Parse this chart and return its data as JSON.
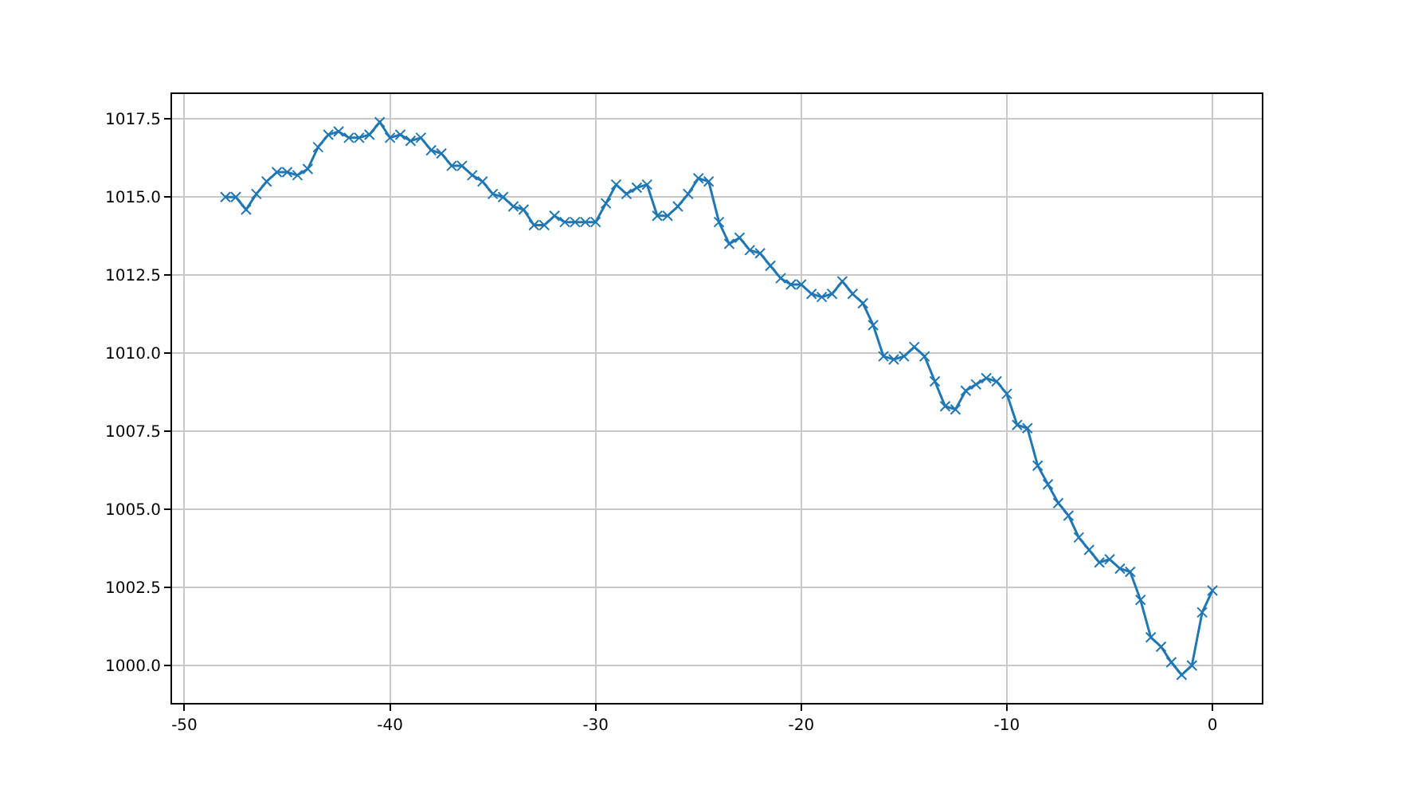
{
  "chart_data": {
    "type": "line",
    "x": [
      -48,
      -47.5,
      -47,
      -46.5,
      -46,
      -45.5,
      -45,
      -44.5,
      -44,
      -43.5,
      -43,
      -42.5,
      -42,
      -41.5,
      -41,
      -40.5,
      -40,
      -39.5,
      -39,
      -38.5,
      -38,
      -37.5,
      -37,
      -36.5,
      -36,
      -35.5,
      -35,
      -34.5,
      -34,
      -33.5,
      -33,
      -32.5,
      -32,
      -31.5,
      -31,
      -30.5,
      -30,
      -29.5,
      -29,
      -28.5,
      -28,
      -27.5,
      -27,
      -26.5,
      -26,
      -25.5,
      -25,
      -24.5,
      -24,
      -23.5,
      -23,
      -22.5,
      -22,
      -21.5,
      -21,
      -20.5,
      -20,
      -19.5,
      -19,
      -18.5,
      -18,
      -17.5,
      -17,
      -16.5,
      -16,
      -15.5,
      -15,
      -14.5,
      -14,
      -13.5,
      -13,
      -12.5,
      -12,
      -11.5,
      -11,
      -10.5,
      -10,
      -9.5,
      -9,
      -8.5,
      -8,
      -7.5,
      -7,
      -6.5,
      -6,
      -5.5,
      -5,
      -4.5,
      -4,
      -3.5,
      -3,
      -2.5,
      -2,
      -1.5,
      -1,
      -0.5,
      0
    ],
    "series": [
      {
        "color": "#1f77b4",
        "values": [
          1015.0,
          1015.0,
          1014.6,
          1015.1,
          1015.5,
          1015.8,
          1015.8,
          1015.7,
          1015.9,
          1016.6,
          1017.0,
          1017.1,
          1016.9,
          1016.9,
          1017.0,
          1017.4,
          1016.9,
          1017.0,
          1016.8,
          1016.9,
          1016.5,
          1016.4,
          1016.0,
          1016.0,
          1015.7,
          1015.5,
          1015.1,
          1015.0,
          1014.7,
          1014.6,
          1014.1,
          1014.1,
          1014.4,
          1014.2,
          1014.2,
          1014.2,
          1014.2,
          1014.8,
          1015.4,
          1015.1,
          1015.3,
          1015.4,
          1014.4,
          1014.4,
          1014.7,
          1015.1,
          1015.6,
          1015.5,
          1014.2,
          1013.5,
          1013.7,
          1013.3,
          1013.2,
          1012.8,
          1012.4,
          1012.2,
          1012.2,
          1011.9,
          1011.8,
          1011.9,
          1012.3,
          1011.9,
          1011.6,
          1010.9,
          1009.9,
          1009.8,
          1009.9,
          1010.2,
          1009.9,
          1009.1,
          1008.3,
          1008.2,
          1008.8,
          1009.0,
          1009.2,
          1009.1,
          1008.7,
          1007.7,
          1007.6,
          1006.4,
          1005.8,
          1005.2,
          1004.8,
          1004.1,
          1003.7,
          1003.3,
          1003.4,
          1003.1,
          1003.0,
          1002.1,
          1000.9,
          1000.6,
          1000.1,
          999.7,
          1000.0,
          1001.7,
          1002.4
        ]
      }
    ],
    "xlim": [
      -50.6,
      2.4
    ],
    "xticks": [
      -50,
      -40,
      -30,
      -20,
      -10,
      0
    ],
    "ylim": [
      998.8,
      1018.3
    ],
    "yticks": [
      {
        "value": 1000,
        "label": "1000.0"
      },
      {
        "value": 1002.5,
        "label": "1002.5"
      },
      {
        "value": 1005,
        "label": "1005.0"
      },
      {
        "value": 1007.5,
        "label": "1007.5"
      },
      {
        "value": 1010,
        "label": "1010.0"
      },
      {
        "value": 1012.5,
        "label": "1012.5"
      },
      {
        "value": 1015,
        "label": "1015.0"
      },
      {
        "value": 1017.5,
        "label": "1017.5"
      }
    ],
    "grid": true,
    "marker": "cross",
    "line_style": "solid"
  }
}
